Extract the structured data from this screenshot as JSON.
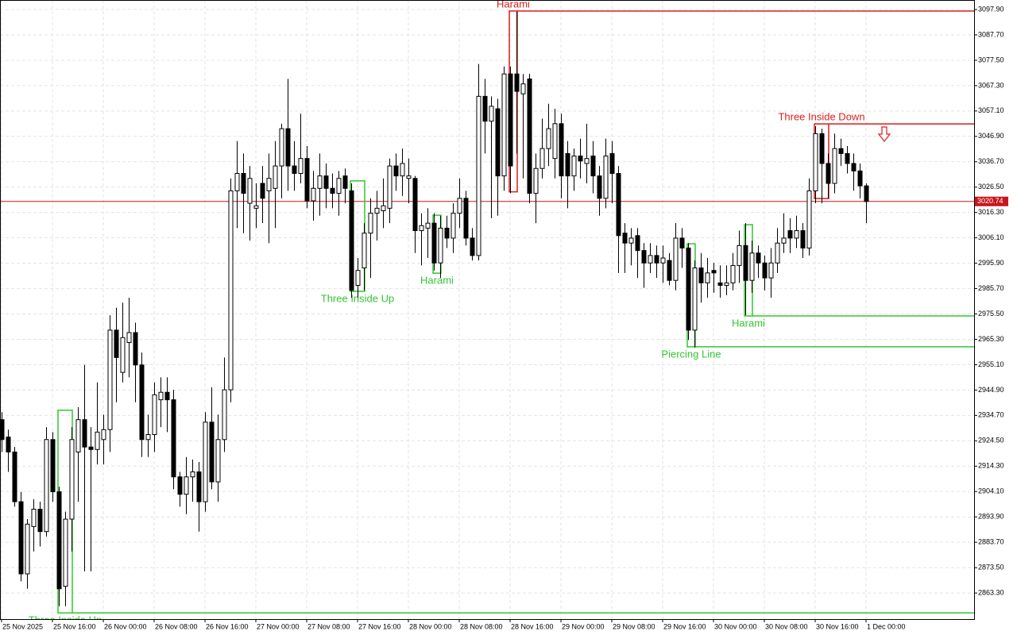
{
  "chart_data": {
    "type": "candlestick",
    "up_color": "#ffffff",
    "down_color": "#000000",
    "outline_color": "#000000",
    "grid": true,
    "categories": [
      "25 Nov 2025",
      null,
      null,
      null,
      null,
      null,
      null,
      null,
      "25 Nov 16:00",
      null,
      null,
      null,
      null,
      null,
      null,
      null,
      "26 Nov 00:00",
      null,
      null,
      null,
      null,
      null,
      null,
      null,
      "26 Nov 08:00",
      null,
      null,
      null,
      null,
      null,
      null,
      null,
      "26 Nov 16:00",
      null,
      null,
      null,
      null,
      null,
      null,
      null,
      "27 Nov 00:00",
      null,
      null,
      null,
      null,
      null,
      null,
      null,
      "27 Nov 08:00",
      null,
      null,
      null,
      null,
      null,
      null,
      null,
      "27 Nov 16:00",
      null,
      null,
      null,
      null,
      null,
      null,
      null,
      "28 Nov 00:00",
      null,
      null,
      null,
      null,
      null,
      null,
      null,
      "28 Nov 08:00",
      null,
      null,
      null,
      null,
      null,
      null,
      null,
      "28 Nov 16:00",
      null,
      null,
      null,
      null,
      null,
      null,
      null,
      "29 Nov 00:00",
      null,
      null,
      null,
      null,
      null,
      null,
      null,
      "29 Nov 08:00",
      null,
      null,
      null,
      null,
      null,
      null,
      null,
      "29 Nov 16:00",
      null,
      null,
      null,
      null,
      null,
      null,
      null,
      "30 Nov 00:00",
      null,
      null,
      null,
      null,
      null,
      null,
      null,
      "30 Nov 08:00",
      null,
      null,
      null,
      null,
      null,
      null,
      null,
      "30 Nov 16:00",
      null,
      null,
      null,
      null,
      null,
      null,
      null,
      "1 Dec 00:00"
    ],
    "ohlc": [
      [
        2933,
        2936,
        2920,
        2925
      ],
      [
        2926,
        2929,
        2912,
        2920
      ],
      [
        2920,
        2922,
        2898,
        2900
      ],
      [
        2900,
        2904,
        2868,
        2871
      ],
      [
        2871,
        2893,
        2865,
        2891
      ],
      [
        2890,
        2901,
        2880,
        2897
      ],
      [
        2897,
        2900,
        2882,
        2888
      ],
      [
        2888,
        2930,
        2886,
        2925
      ],
      [
        2925,
        2928,
        2900,
        2904
      ],
      [
        2904,
        2906,
        2858,
        2865
      ],
      [
        2866,
        2896,
        2858,
        2893
      ],
      [
        2893,
        2930,
        2880,
        2925
      ],
      [
        2920,
        2938,
        2900,
        2933
      ],
      [
        2933,
        2955,
        2872,
        2922
      ],
      [
        2922,
        2930,
        2872,
        2921
      ],
      [
        2921,
        2948,
        2915,
        2928
      ],
      [
        2925,
        2935,
        2915,
        2929
      ],
      [
        2929,
        2975,
        2920,
        2969
      ],
      [
        2969,
        2978,
        2940,
        2958
      ],
      [
        2952,
        2980,
        2948,
        2966
      ],
      [
        2964,
        2982,
        2950,
        2968
      ],
      [
        2968,
        2972,
        2940,
        2955
      ],
      [
        2955,
        2960,
        2918,
        2925
      ],
      [
        2925,
        2935,
        2918,
        2927
      ],
      [
        2927,
        2948,
        2920,
        2943
      ],
      [
        2941,
        2950,
        2930,
        2944
      ],
      [
        2944,
        2950,
        2928,
        2941
      ],
      [
        2941,
        2945,
        2905,
        2910
      ],
      [
        2910,
        2912,
        2898,
        2903
      ],
      [
        2903,
        2918,
        2895,
        2910
      ],
      [
        2910,
        2917,
        2900,
        2912
      ],
      [
        2912,
        2916,
        2888,
        2900
      ],
      [
        2900,
        2936,
        2896,
        2932
      ],
      [
        2932,
        2946,
        2905,
        2908
      ],
      [
        2908,
        2935,
        2900,
        2925
      ],
      [
        2925,
        2958,
        2920,
        2945
      ],
      [
        2945,
        3030,
        2940,
        3025
      ],
      [
        3025,
        3045,
        3010,
        3032
      ],
      [
        3032,
        3040,
        3008,
        3024
      ],
      [
        3020,
        3035,
        3005,
        3030
      ],
      [
        3018,
        3028,
        3010,
        3019
      ],
      [
        3028,
        3035,
        3012,
        3022
      ],
      [
        3025,
        3040,
        3004,
        3030
      ],
      [
        3026,
        3045,
        3010,
        3035
      ],
      [
        3035,
        3052,
        3022,
        3050
      ],
      [
        3050,
        3070,
        3025,
        3035
      ],
      [
        3035,
        3045,
        3025,
        3032
      ],
      [
        3032,
        3056,
        3028,
        3038
      ],
      [
        3038,
        3043,
        3018,
        3021
      ],
      [
        3021,
        3033,
        3013,
        3026
      ],
      [
        3026,
        3040,
        3015,
        3031
      ],
      [
        3031,
        3036,
        3018,
        3026
      ],
      [
        3026,
        3032,
        3018,
        3024
      ],
      [
        3024,
        3033,
        3015,
        3030
      ],
      [
        3031,
        3034,
        3020,
        3026
      ],
      [
        3025,
        3028,
        2982,
        2985
      ],
      [
        2987,
        2998,
        2982,
        2993
      ],
      [
        2994,
        3012,
        2985,
        3008
      ],
      [
        3008,
        3022,
        2990,
        3016
      ],
      [
        3016,
        3025,
        3005,
        3018
      ],
      [
        3017,
        3030,
        3010,
        3019
      ],
      [
        3018,
        3038,
        3012,
        3035
      ],
      [
        3035,
        3040,
        3025,
        3031
      ],
      [
        3031,
        3042,
        3023,
        3036
      ],
      [
        3030,
        3038,
        3020,
        3031
      ],
      [
        3030,
        3031,
        3000,
        3009
      ],
      [
        3009,
        3016,
        2995,
        3011
      ],
      [
        3010,
        3018,
        2998,
        3012
      ],
      [
        3012,
        3016,
        2993,
        2996
      ],
      [
        2996,
        3015,
        2990,
        3010
      ],
      [
        3010,
        3015,
        3002,
        3006
      ],
      [
        3006,
        3020,
        3000,
        3016
      ],
      [
        3016,
        3030,
        3010,
        3022
      ],
      [
        3022,
        3025,
        3003,
        3006
      ],
      [
        3006,
        3010,
        2997,
        2999
      ],
      [
        2999,
        3076,
        2997,
        3063
      ],
      [
        3063,
        3070,
        3040,
        3053
      ],
      [
        3053,
        3063,
        3014,
        3059
      ],
      [
        3058,
        3062,
        3015,
        3031
      ],
      [
        3031,
        3075,
        3025,
        3072
      ],
      [
        3072,
        3075,
        3024,
        3035
      ],
      [
        3072,
        3097,
        3040,
        3065
      ],
      [
        3064,
        3072,
        3030,
        3068
      ],
      [
        3070,
        3072,
        3020,
        3024
      ],
      [
        3024,
        3040,
        3012,
        3034
      ],
      [
        3034,
        3054,
        3030,
        3042
      ],
      [
        3042,
        3060,
        3035,
        3050
      ],
      [
        3038,
        3058,
        3030,
        3052
      ],
      [
        3052,
        3056,
        3022,
        3031
      ],
      [
        3040,
        3045,
        3018,
        3031
      ],
      [
        3031,
        3042,
        3025,
        3039
      ],
      [
        3039,
        3046,
        3030,
        3037
      ],
      [
        3036,
        3052,
        3028,
        3038
      ],
      [
        3039,
        3045,
        3024,
        3031
      ],
      [
        3031,
        3035,
        3015,
        3022
      ],
      [
        3022,
        3046,
        3018,
        3039
      ],
      [
        3040,
        3045,
        3020,
        3032
      ],
      [
        3032,
        3035,
        2992,
        3007
      ],
      [
        3008,
        3012,
        2992,
        3004
      ],
      [
        3004,
        3010,
        2995,
        3006
      ],
      [
        3007,
        3010,
        2990,
        3001
      ],
      [
        3001,
        3004,
        2986,
        2996
      ],
      [
        2996,
        3004,
        2992,
        2999
      ],
      [
        2999,
        3003,
        2990,
        2996
      ],
      [
        2996,
        3003,
        2988,
        2998
      ],
      [
        2997,
        3000,
        2987,
        2989
      ],
      [
        2989,
        3012,
        2985,
        3006
      ],
      [
        3006,
        3010,
        2994,
        3002
      ],
      [
        3002,
        3004,
        2965,
        2969
      ],
      [
        2969,
        2997,
        2962,
        2994
      ],
      [
        2994,
        3000,
        2980,
        2988
      ],
      [
        2988,
        2998,
        2982,
        2992
      ],
      [
        2993,
        2996,
        2984,
        2992
      ],
      [
        2988,
        2995,
        2982,
        2987
      ],
      [
        2987,
        2995,
        2983,
        2988
      ],
      [
        2988,
        3000,
        2985,
        2995
      ],
      [
        2995,
        3009,
        2988,
        3003
      ],
      [
        3003,
        3012,
        2975,
        2989
      ],
      [
        2989,
        3005,
        2984,
        3000
      ],
      [
        3000,
        3003,
        2990,
        2996
      ],
      [
        2996,
        2999,
        2985,
        2990
      ],
      [
        2990,
        3002,
        2982,
        2996
      ],
      [
        2996,
        3010,
        2992,
        3004
      ],
      [
        3004,
        3016,
        3000,
        3006
      ],
      [
        3009,
        3014,
        3000,
        3006
      ],
      [
        3006,
        3015,
        3002,
        3009
      ],
      [
        3009,
        3012,
        2998,
        3002
      ],
      [
        3002,
        3030,
        2999,
        3025
      ],
      [
        3025,
        3051,
        3020,
        3048
      ],
      [
        3048,
        3050,
        3020,
        3036
      ],
      [
        3036,
        3040,
        3022,
        3028
      ],
      [
        3028,
        3048,
        3024,
        3042
      ],
      [
        3042,
        3046,
        3035,
        3040
      ],
      [
        3040,
        3043,
        3032,
        3036
      ],
      [
        3036,
        3040,
        3025,
        3033
      ],
      [
        3033,
        3036,
        3022,
        3027
      ],
      [
        3027,
        3028,
        3012,
        3020.74
      ]
    ],
    "last_price": 3020.74,
    "last_price_color": "#c8161d",
    "ylim": [
      2852.8,
      3101.73
    ],
    "yticks": [
      {
        "value": 3097.9,
        "label": "3097.90"
      },
      {
        "value": 3087.7,
        "label": "3087.70"
      },
      {
        "value": 3077.5,
        "label": "3077.50"
      },
      {
        "value": 3067.3,
        "label": "3067.30"
      },
      {
        "value": 3057.1,
        "label": "3057.10"
      },
      {
        "value": 3046.9,
        "label": "3046.90"
      },
      {
        "value": 3036.7,
        "label": "3036.70"
      },
      {
        "value": 3026.5,
        "label": "3026.50"
      },
      {
        "value": 3016.3,
        "label": "3016.30"
      },
      {
        "value": 3006.1,
        "label": "3006.10"
      },
      {
        "value": 2995.9,
        "label": "2995.90"
      },
      {
        "value": 2985.7,
        "label": "2985.70"
      },
      {
        "value": 2975.5,
        "label": "2975.50"
      },
      {
        "value": 2965.3,
        "label": "2965.30"
      },
      {
        "value": 2955.1,
        "label": "2955.10"
      },
      {
        "value": 2944.9,
        "label": "2944.90"
      },
      {
        "value": 2934.7,
        "label": "2934.70"
      },
      {
        "value": 2924.5,
        "label": "2924.50"
      },
      {
        "value": 2914.3,
        "label": "2914.30"
      },
      {
        "value": 2904.1,
        "label": "2904.10"
      },
      {
        "value": 2893.9,
        "label": "2893.90"
      },
      {
        "value": 2883.7,
        "label": "2883.70"
      },
      {
        "value": 2873.5,
        "label": "2873.50"
      },
      {
        "value": 2863.3,
        "label": "2863.30"
      }
    ],
    "patterns": [
      {
        "name": "Three Inside Up",
        "color": "#33c633",
        "start": 9,
        "end": 11,
        "high": 2936.8,
        "low": 2855.3,
        "level": 2855.3,
        "label_position": "below"
      },
      {
        "name": "Three Inside Up",
        "color": "#33c633",
        "start": 55,
        "end": 57,
        "high": 3029,
        "low": 2984.6,
        "label_position": "below"
      },
      {
        "name": "Harami",
        "color": "#33c633",
        "start": 68,
        "end": 69,
        "high": 3015.2,
        "low": 2991.9,
        "label_position": "below"
      },
      {
        "name": "Harami",
        "color": "#d81e1e",
        "start": 80,
        "end": 81,
        "high": 3097.3,
        "low": 3024.6,
        "level": 3097.3,
        "label_position": "above"
      },
      {
        "name": "Piercing Line",
        "color": "#33c633",
        "start": 108,
        "end": 109,
        "high": 3003.7,
        "low": 2962.3,
        "level": 2962.3,
        "label_position": "below"
      },
      {
        "name": "Harami",
        "color": "#33c633",
        "start": 117,
        "end": 118,
        "high": 3011.4,
        "low": 2974.7,
        "level": 2974.7,
        "label_position": "below"
      },
      {
        "name": "Three Inside Down",
        "color": "#d81e1e",
        "start": 128,
        "end": 130,
        "high": 3051.9,
        "low": 3021.9,
        "level": 3051.9,
        "label_position": "above"
      }
    ]
  }
}
